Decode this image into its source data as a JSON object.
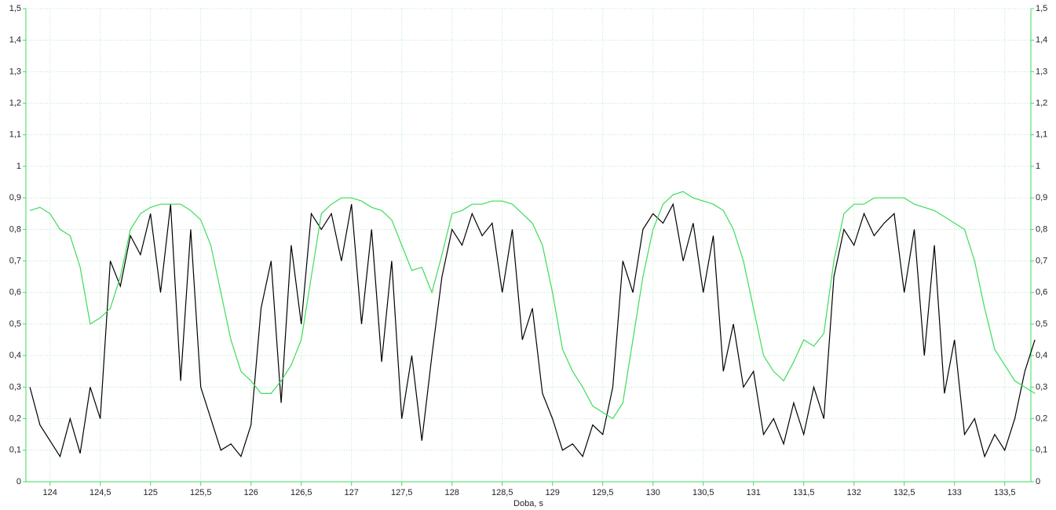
{
  "chart_data": {
    "type": "line",
    "x_label": "Doba, s",
    "x": [
      123.8,
      123.9,
      124.0,
      124.1,
      124.2,
      124.3,
      124.4,
      124.5,
      124.6,
      124.7,
      124.8,
      124.9,
      125.0,
      125.1,
      125.2,
      125.3,
      125.4,
      125.5,
      125.6,
      125.7,
      125.8,
      125.9,
      126.0,
      126.1,
      126.2,
      126.3,
      126.4,
      126.5,
      126.6,
      126.7,
      126.8,
      126.9,
      127.0,
      127.1,
      127.2,
      127.3,
      127.4,
      127.5,
      127.6,
      127.7,
      127.8,
      127.9,
      128.0,
      128.1,
      128.2,
      128.3,
      128.4,
      128.5,
      128.6,
      128.7,
      128.8,
      128.9,
      129.0,
      129.1,
      129.2,
      129.3,
      129.4,
      129.5,
      129.6,
      129.7,
      129.8,
      129.9,
      130.0,
      130.1,
      130.2,
      130.3,
      130.4,
      130.5,
      130.6,
      130.7,
      130.8,
      130.9,
      131.0,
      131.1,
      131.2,
      131.3,
      131.4,
      131.5,
      131.6,
      131.7,
      131.8,
      131.9,
      132.0,
      132.1,
      132.2,
      132.3,
      132.4,
      132.5,
      132.6,
      132.7,
      132.8,
      132.9,
      133.0,
      133.1,
      133.2,
      133.3,
      133.4,
      133.5,
      133.6,
      133.7,
      133.8
    ],
    "series": [
      {
        "color": "#000000",
        "values": [
          0.3,
          0.18,
          0.13,
          0.08,
          0.2,
          0.09,
          0.3,
          0.2,
          0.7,
          0.62,
          0.78,
          0.72,
          0.85,
          0.6,
          0.88,
          0.32,
          0.8,
          0.3,
          0.2,
          0.1,
          0.12,
          0.08,
          0.18,
          0.55,
          0.7,
          0.25,
          0.75,
          0.5,
          0.85,
          0.8,
          0.85,
          0.7,
          0.88,
          0.5,
          0.8,
          0.38,
          0.7,
          0.2,
          0.4,
          0.13,
          0.4,
          0.65,
          0.8,
          0.75,
          0.85,
          0.78,
          0.82,
          0.6,
          0.8,
          0.45,
          0.55,
          0.28,
          0.2,
          0.1,
          0.12,
          0.08,
          0.18,
          0.15,
          0.3,
          0.7,
          0.6,
          0.8,
          0.85,
          0.82,
          0.88,
          0.7,
          0.82,
          0.6,
          0.78,
          0.35,
          0.5,
          0.3,
          0.35,
          0.15,
          0.2,
          0.12,
          0.25,
          0.15,
          0.3,
          0.2,
          0.65,
          0.8,
          0.75,
          0.85,
          0.78,
          0.82,
          0.85,
          0.6,
          0.8,
          0.4,
          0.75,
          0.28,
          0.45,
          0.15,
          0.2,
          0.08,
          0.15,
          0.1,
          0.2,
          0.35,
          0.45
        ]
      },
      {
        "color": "#3ddc5a",
        "values": [
          0.86,
          0.87,
          0.85,
          0.8,
          0.78,
          0.68,
          0.5,
          0.52,
          0.55,
          0.65,
          0.8,
          0.85,
          0.87,
          0.88,
          0.88,
          0.88,
          0.86,
          0.83,
          0.75,
          0.6,
          0.45,
          0.35,
          0.32,
          0.28,
          0.28,
          0.32,
          0.37,
          0.45,
          0.65,
          0.85,
          0.88,
          0.9,
          0.9,
          0.89,
          0.87,
          0.86,
          0.83,
          0.75,
          0.67,
          0.68,
          0.6,
          0.72,
          0.85,
          0.86,
          0.88,
          0.88,
          0.89,
          0.89,
          0.88,
          0.85,
          0.82,
          0.75,
          0.6,
          0.42,
          0.35,
          0.3,
          0.24,
          0.22,
          0.2,
          0.25,
          0.45,
          0.65,
          0.8,
          0.88,
          0.91,
          0.92,
          0.9,
          0.89,
          0.88,
          0.86,
          0.8,
          0.7,
          0.55,
          0.4,
          0.35,
          0.32,
          0.38,
          0.45,
          0.43,
          0.47,
          0.7,
          0.85,
          0.88,
          0.88,
          0.9,
          0.9,
          0.9,
          0.9,
          0.88,
          0.87,
          0.86,
          0.84,
          0.82,
          0.8,
          0.7,
          0.55,
          0.42,
          0.37,
          0.32,
          0.3,
          0.28
        ]
      }
    ],
    "xlim": [
      123.76,
      133.76
    ],
    "xticks": [
      124,
      {
        "value": 124.5,
        "label": "124,5"
      },
      125,
      {
        "value": 125.5,
        "label": "125,5"
      },
      126,
      {
        "value": 126.5,
        "label": "126,5"
      },
      127,
      {
        "value": 127.5,
        "label": "127,5"
      },
      128,
      {
        "value": 128.5,
        "label": "128,5"
      },
      129,
      {
        "value": 129.5,
        "label": "129,5"
      },
      130,
      {
        "value": 130.5,
        "label": "130,5"
      },
      131,
      {
        "value": 131.5,
        "label": "131,5"
      },
      132,
      {
        "value": 132.5,
        "label": "132,5"
      },
      133,
      {
        "value": 133.5,
        "label": "133,5"
      }
    ],
    "ylim": [
      0,
      1.5
    ],
    "yticks": [
      0,
      {
        "value": 0.1,
        "label": "0,1"
      },
      {
        "value": 0.2,
        "label": "0,2"
      },
      {
        "value": 0.3,
        "label": "0,3"
      },
      {
        "value": 0.4,
        "label": "0,4"
      },
      {
        "value": 0.5,
        "label": "0,5"
      },
      {
        "value": 0.6,
        "label": "0,6"
      },
      {
        "value": 0.7,
        "label": "0,7"
      },
      {
        "value": 0.8,
        "label": "0,8"
      },
      {
        "value": 0.9,
        "label": "0,9"
      },
      1,
      {
        "value": 1.1,
        "label": "1,1"
      },
      {
        "value": 1.2,
        "label": "1,2"
      },
      {
        "value": 1.3,
        "label": "1,3"
      },
      {
        "value": 1.4,
        "label": "1,4"
      },
      {
        "value": 1.5,
        "label": "1,5"
      }
    ],
    "grid": true,
    "axis_color": "#3ddc5a"
  }
}
